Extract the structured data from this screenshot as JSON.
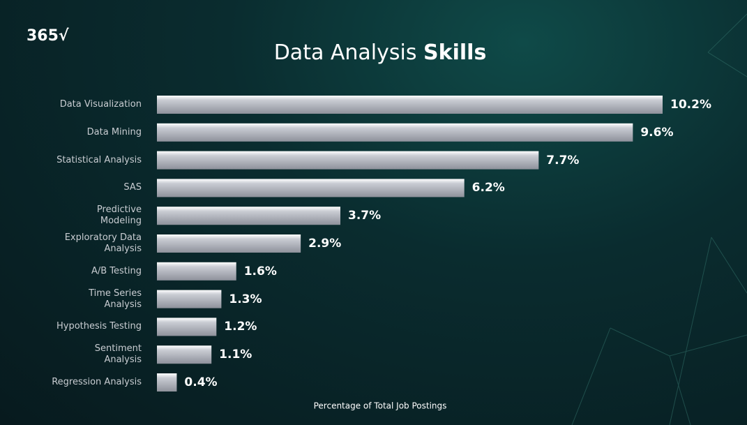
{
  "chart_data": {
    "type": "bar",
    "orientation": "horizontal",
    "logo": "365√",
    "title": "Data Analysis",
    "title_bold": "Skills",
    "xlabel": "Percentage of Total Job Postings",
    "categories": [
      "Data Visualization",
      "Data Mining",
      "Statistical Analysis",
      "SAS",
      "Predictive\nModeling",
      "Exploratory Data\nAnalysis",
      "A/B Testing",
      "Time Series\nAnalysis",
      "Hypothesis Testing",
      "Sentiment\nAnalysis",
      "Regression Analysis"
    ],
    "values": [
      10.2,
      9.6,
      7.7,
      6.2,
      3.7,
      2.9,
      1.6,
      1.3,
      1.2,
      1.1,
      0.4
    ],
    "value_labels": [
      "10.2%",
      "9.6%",
      "7.7%",
      "6.2%",
      "3.7%",
      "2.9%",
      "1.6%",
      "1.3%",
      "1.2%",
      "1.1%",
      "0.4%"
    ],
    "color": "#b9bcc4"
  }
}
